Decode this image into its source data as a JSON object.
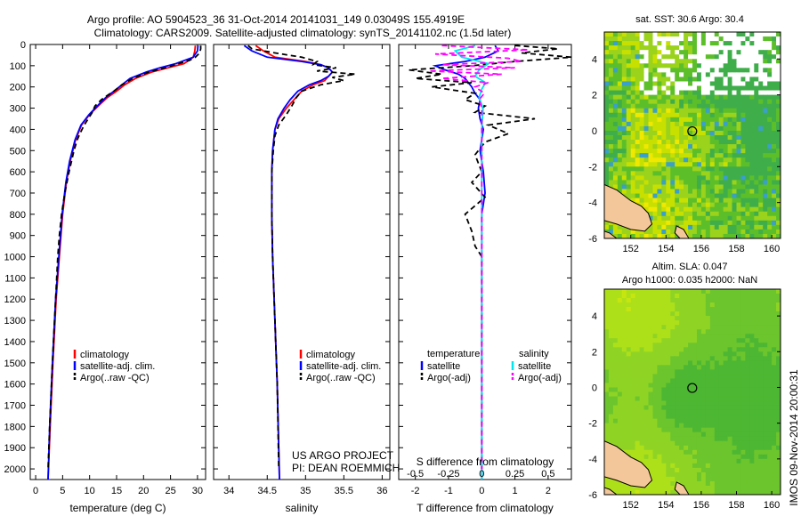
{
  "header": {
    "line1": "Argo profile: AO 5904523_36 31-Oct-2014 20141031_149 0.03049S 155.4919E",
    "line2": "Climatology: CARS2009. Satellite-adjusted climatology: synTS_20141102.nc (1.5d later)"
  },
  "colors": {
    "climatology": "#ff0000",
    "satellite": "#0000ff",
    "argo": "#000000",
    "sat_salinity": "#00e5ee",
    "argo_salinity": "#ff00ff",
    "land": "#f4c79a"
  },
  "depth_axis": {
    "ylim": [
      0,
      2050
    ],
    "ticks": [
      0,
      100,
      200,
      300,
      400,
      500,
      600,
      700,
      800,
      900,
      1000,
      1100,
      1200,
      1300,
      1400,
      1500,
      1600,
      1700,
      1800,
      1900,
      2000
    ]
  },
  "chart_data": [
    {
      "type": "line",
      "id": "temperature",
      "xlabel": "temperature (deg C)",
      "xlim": [
        -1,
        31.5
      ],
      "xticks": [
        0,
        5,
        10,
        15,
        20,
        25,
        30
      ],
      "ylim": [
        0,
        2050
      ],
      "legend": [
        "climatology",
        "satellite-adj. clim.",
        "Argo(..raw -QC)"
      ],
      "series": [
        {
          "name": "climatology",
          "depth": [
            5,
            30,
            60,
            90,
            110,
            130,
            160,
            190,
            220,
            250,
            280,
            330,
            380,
            450,
            550,
            650,
            800,
            1000,
            1200,
            1500,
            1800,
            2050
          ],
          "values": [
            29.6,
            29.5,
            29.2,
            27.5,
            24.5,
            21.5,
            18.5,
            16.5,
            15,
            13.3,
            12,
            10,
            8.5,
            7.4,
            6.4,
            5.7,
            5,
            4.4,
            3.8,
            3.2,
            2.7,
            2.3
          ]
        },
        {
          "name": "satellite-adj. clim.",
          "depth": [
            5,
            30,
            60,
            90,
            110,
            130,
            160,
            190,
            220,
            250,
            280,
            330,
            380,
            450,
            550,
            650,
            800,
            1000,
            1200,
            1500,
            1800,
            2050
          ],
          "values": [
            30.1,
            30,
            29.2,
            26,
            23,
            20.5,
            17.5,
            16,
            14.5,
            13,
            11.8,
            9.9,
            8.4,
            7.3,
            6.3,
            5.6,
            4.9,
            4.3,
            3.7,
            3.1,
            2.6,
            2.3
          ]
        },
        {
          "name": "Argo(..raw -QC)",
          "depth": [
            5,
            20,
            40,
            60,
            75,
            90,
            110,
            130,
            160,
            190,
            220,
            240,
            260,
            290,
            320,
            380,
            420,
            450,
            500,
            600,
            700,
            800,
            900,
            1000,
            1200,
            1500,
            1800,
            2000
          ],
          "values": [
            30.6,
            30.6,
            30.4,
            29.6,
            28.5,
            26.5,
            24,
            21,
            18,
            16,
            14.5,
            13.3,
            12.2,
            11,
            10.5,
            9,
            8.2,
            7.7,
            7.1,
            6.2,
            5.4,
            4.8,
            4.4,
            4.1,
            3.7,
            3.1,
            2.6,
            2.3
          ]
        }
      ]
    },
    {
      "type": "line",
      "id": "salinity",
      "xlabel": "salinity",
      "xlim": [
        33.8,
        36.1
      ],
      "xticks": [
        34,
        34.5,
        35,
        35.5,
        36
      ],
      "ylim": [
        0,
        2050
      ],
      "legend": [
        "climatology",
        "satellite-adj. clim.",
        "Argo(..raw -QC)"
      ],
      "series": [
        {
          "name": "climatology",
          "depth": [
            5,
            30,
            60,
            80,
            95,
            110,
            130,
            150,
            170,
            190,
            220,
            260,
            300,
            350,
            400,
            500,
            600,
            800,
            1000,
            1300,
            1600,
            2050
          ],
          "values": [
            34.35,
            34.45,
            34.6,
            35.0,
            35.2,
            35.3,
            35.35,
            35.3,
            35.25,
            35.1,
            34.95,
            34.85,
            34.75,
            34.65,
            34.6,
            34.57,
            34.56,
            34.56,
            34.57,
            34.6,
            34.63,
            34.66
          ]
        },
        {
          "name": "satellite-adj. clim.",
          "depth": [
            5,
            30,
            60,
            80,
            95,
            110,
            130,
            150,
            170,
            190,
            220,
            260,
            300,
            350,
            400,
            500,
            600,
            800,
            1000,
            1300,
            1600,
            2050
          ],
          "values": [
            34.2,
            34.3,
            34.5,
            34.95,
            35.2,
            35.3,
            35.35,
            35.3,
            35.2,
            35.05,
            34.9,
            34.8,
            34.72,
            34.64,
            34.6,
            34.57,
            34.56,
            34.56,
            34.57,
            34.6,
            34.63,
            34.66
          ]
        },
        {
          "name": "Argo(..raw -QC)",
          "depth": [
            5,
            20,
            40,
            60,
            80,
            95,
            110,
            125,
            140,
            155,
            170,
            190,
            220,
            250,
            290,
            330,
            380,
            430,
            500,
            600,
            800,
            1000,
            1300,
            1600,
            2000
          ],
          "values": [
            34.25,
            34.3,
            34.6,
            34.95,
            35.15,
            35.1,
            35.4,
            35.15,
            35.65,
            35.35,
            35.5,
            35.2,
            34.95,
            34.88,
            34.82,
            34.75,
            34.65,
            34.6,
            34.58,
            34.56,
            34.56,
            34.57,
            34.6,
            34.63,
            34.65
          ]
        }
      ]
    },
    {
      "type": "line",
      "id": "difference",
      "xlabel": "T difference from climatology",
      "xlabel2": "S difference from climatology",
      "xlim": [
        -2.5,
        2.7
      ],
      "xticks": [
        -2,
        -1,
        0,
        1,
        2
      ],
      "xticks_s_labels": [
        "-0.5",
        "-0.25",
        "0",
        "0.25",
        "0.5"
      ],
      "xticks_s_values": [
        -0.5,
        -0.25,
        0,
        0.25,
        0.5
      ],
      "ylim": [
        0,
        2050
      ],
      "legend_title_t": "temperature",
      "legend_title_s": "salinity",
      "legend": [
        "satellite",
        "Argo(-adj)",
        "satellite",
        "Argo(-adj)"
      ],
      "series": [
        {
          "name": "temperature satellite",
          "depth": [
            5,
            30,
            60,
            80,
            100,
            120,
            140,
            160,
            180,
            200,
            230,
            260,
            300,
            350,
            400,
            500,
            600,
            700,
            800,
            1000,
            1300,
            1600,
            2050
          ],
          "values": [
            0.4,
            0.5,
            0.1,
            -0.5,
            -1.4,
            -1.1,
            -0.7,
            -0.5,
            -0.4,
            -0.3,
            -0.2,
            -0.05,
            -0.1,
            -0.05,
            0.05,
            -0.05,
            0.05,
            0.1,
            0.0,
            0.0,
            0.0,
            0.0,
            0.0
          ]
        },
        {
          "name": "temperature Argo(-adj)",
          "depth": [
            5,
            20,
            40,
            60,
            80,
            100,
            120,
            140,
            160,
            180,
            200,
            230,
            260,
            290,
            320,
            350,
            380,
            420,
            460,
            520,
            600,
            650,
            720,
            800,
            880,
            950,
            1000,
            1200,
            1500,
            1800,
            2000
          ],
          "values": [
            1.0,
            2.3,
            1.2,
            2.7,
            1.0,
            -0.3,
            -2.2,
            -1.2,
            -2.0,
            -0.3,
            -1.5,
            -0.2,
            -0.5,
            0.1,
            -0.2,
            1.6,
            0.2,
            0.8,
            0.1,
            -0.2,
            0.0,
            -0.3,
            0.1,
            -0.5,
            -0.3,
            -0.2,
            0.0,
            0.0,
            0.0,
            0.0,
            0.0
          ]
        },
        {
          "name": "salinity satellite",
          "depth": [
            5,
            30,
            60,
            90,
            120,
            150,
            180,
            210,
            250,
            300,
            400,
            500,
            700,
            1000,
            1500,
            2050
          ],
          "values": [
            -0.05,
            -0.2,
            -0.15,
            0.05,
            -0.02,
            -0.05,
            0.03,
            0.0,
            -0.02,
            0.01,
            0.0,
            0.0,
            0.0,
            0.0,
            0.0,
            0.0
          ],
          "scale": "salinity"
        },
        {
          "name": "salinity Argo(-adj)",
          "depth": [
            5,
            25,
            45,
            65,
            80,
            95,
            110,
            125,
            140,
            160,
            180,
            200,
            230,
            260,
            300,
            400,
            500,
            700,
            1000,
            1500,
            2000
          ],
          "values": [
            -0.3,
            0.35,
            -0.35,
            0.2,
            0.3,
            -0.3,
            0.25,
            -0.4,
            0.15,
            -0.3,
            0.05,
            -0.05,
            0.02,
            -0.02,
            0.0,
            0.0,
            0.0,
            0.0,
            0.0,
            0.0,
            0.0
          ],
          "scale": "salinity"
        }
      ]
    },
    {
      "type": "heatmap",
      "id": "sst_map",
      "title": "sat. SST: 30.6 Argo: 30.4",
      "xlim": [
        150.5,
        160.5
      ],
      "ylim": [
        -6,
        5.5
      ],
      "xticks": [
        152,
        154,
        156,
        158,
        160
      ],
      "yticks": [
        -6,
        -4,
        -2,
        0,
        2,
        4
      ],
      "marker": {
        "lon": 155.49,
        "lat": -0.03
      }
    },
    {
      "type": "heatmap",
      "id": "sla_map",
      "title": "Altim. SLA: 0.047",
      "subtitle": "Argo h1000: 0.035 h2000: NaN",
      "xlim": [
        150.5,
        160.5
      ],
      "ylim": [
        -6,
        5.5
      ],
      "xticks": [
        152,
        154,
        156,
        158,
        160
      ],
      "yticks": [
        -6,
        -4,
        -2,
        0,
        2,
        4
      ],
      "marker": {
        "lon": 155.49,
        "lat": -0.03
      }
    }
  ],
  "annotations": {
    "project": "US ARGO PROJECT",
    "pi": "PI: DEAN ROEMMICH",
    "footer": "IMOS 09-Nov-2014 20:00:31"
  }
}
